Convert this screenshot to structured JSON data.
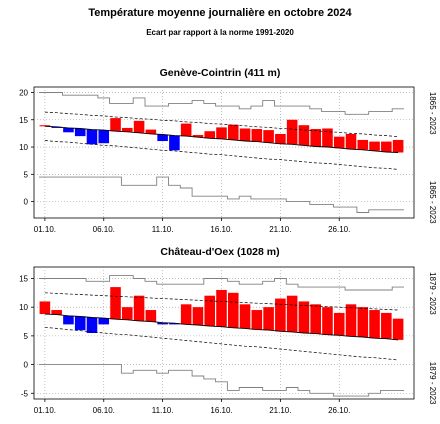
{
  "header": {
    "title": "Température moyenne journalière en octobre 2024",
    "subtitle": "Ecart par rapport à la norme 1991-2020"
  },
  "colors": {
    "above_norm": "#ff0000",
    "below_norm": "#0000ff",
    "record": "#808080",
    "norm": "#000000"
  },
  "chart_data": [
    {
      "type": "bar",
      "title": "Genève-Cointrin (411 m)",
      "record_label_top": "1865 - 2023",
      "record_label_bottom": "1865 - 2023",
      "x_ticks": [
        "01.10.",
        "06.10.",
        "11.10.",
        "16.10.",
        "21.10.",
        "26.10."
      ],
      "ylim": [
        -3,
        21
      ],
      "yticks": [
        0,
        5,
        10,
        15,
        20
      ],
      "grid": true,
      "days": [
        1,
        2,
        3,
        4,
        5,
        6,
        7,
        8,
        9,
        10,
        11,
        12,
        13,
        14,
        15,
        16,
        17,
        18,
        19,
        20,
        21,
        22,
        23,
        24,
        25,
        26,
        27,
        28,
        29,
        30,
        31
      ],
      "values": [
        14.0,
        13.5,
        12.7,
        12.0,
        10.5,
        10.7,
        15.3,
        13.5,
        14.8,
        13.2,
        11.1,
        9.4,
        14.3,
        12.2,
        12.9,
        13.6,
        14.1,
        13.4,
        13.3,
        13.1,
        12.4,
        15.0,
        14.0,
        13.3,
        13.4,
        11.9,
        12.4,
        11.3,
        11.0,
        11.0,
        11.3
      ],
      "norm_mean": [
        13.8,
        13.7,
        13.5,
        13.4,
        13.2,
        13.1,
        12.9,
        12.8,
        12.6,
        12.4,
        12.3,
        12.1,
        12.0,
        11.8,
        11.6,
        11.5,
        11.3,
        11.1,
        11.0,
        10.8,
        10.6,
        10.5,
        10.3,
        10.1,
        10.0,
        9.8,
        9.6,
        9.5,
        9.3,
        9.1,
        9.0
      ],
      "norm_upper": [
        16.4,
        16.3,
        16.1,
        16.0,
        15.8,
        15.7,
        15.5,
        15.4,
        15.2,
        15.1,
        14.9,
        14.8,
        14.6,
        14.5,
        14.3,
        14.2,
        14.0,
        13.9,
        13.7,
        13.6,
        13.4,
        13.3,
        13.1,
        13.0,
        12.8,
        12.7,
        12.5,
        12.4,
        12.2,
        12.1,
        11.9
      ],
      "norm_lower": [
        11.2,
        11.0,
        10.9,
        10.7,
        10.5,
        10.3,
        10.2,
        10.0,
        9.8,
        9.6,
        9.4,
        9.3,
        9.1,
        8.9,
        8.7,
        8.6,
        8.4,
        8.2,
        8.0,
        7.8,
        7.7,
        7.5,
        7.3,
        7.1,
        7.0,
        6.8,
        6.6,
        6.4,
        6.2,
        6.1,
        5.9
      ],
      "record_max": [
        20.0,
        20.0,
        19.5,
        19.5,
        19.5,
        19.0,
        18.0,
        18.0,
        19.0,
        17.5,
        17.5,
        18.0,
        18.0,
        18.5,
        18.0,
        17.5,
        17.5,
        17.0,
        17.5,
        18.5,
        17.5,
        17.5,
        17.5,
        17.0,
        16.5,
        16.5,
        16.0,
        16.0,
        16.5,
        16.5,
        17.0
      ],
      "record_min": [
        4.5,
        4.5,
        4.5,
        4.5,
        4.5,
        4.5,
        4.5,
        3.0,
        3.0,
        3.0,
        4.5,
        3.0,
        2.5,
        1.0,
        1.0,
        1.0,
        0.5,
        1.0,
        0.5,
        0.5,
        0.5,
        0.0,
        0.0,
        -0.5,
        -0.5,
        -1.0,
        -1.0,
        -2.0,
        -1.5,
        -1.5,
        -1.5
      ]
    },
    {
      "type": "bar",
      "title": "Château-d'Oex (1028 m)",
      "record_label_top": "1879 - 2023",
      "record_label_bottom": "1879 - 2023",
      "x_ticks": [
        "01.10.",
        "06.10.",
        "11.10.",
        "16.10.",
        "21.10.",
        "26.10."
      ],
      "ylim": [
        -6,
        17
      ],
      "yticks": [
        -5,
        0,
        5,
        10,
        15
      ],
      "grid": true,
      "days": [
        1,
        2,
        3,
        4,
        5,
        6,
        7,
        8,
        9,
        10,
        11,
        12,
        13,
        14,
        15,
        16,
        17,
        18,
        19,
        20,
        21,
        22,
        23,
        24,
        25,
        26,
        27,
        28,
        29,
        30,
        31
      ],
      "values": [
        11.0,
        9.5,
        7.0,
        6.0,
        5.5,
        7.0,
        13.5,
        10.0,
        12.0,
        9.5,
        7.0,
        7.0,
        10.5,
        10.0,
        12.0,
        13.0,
        12.5,
        10.5,
        9.5,
        10.0,
        11.5,
        12.0,
        11.0,
        10.5,
        10.0,
        9.0,
        10.5,
        10.0,
        9.5,
        9.0,
        8.0
      ],
      "norm_mean": [
        8.8,
        8.7,
        8.5,
        8.4,
        8.2,
        8.1,
        7.9,
        7.8,
        7.6,
        7.5,
        7.3,
        7.2,
        7.0,
        6.9,
        6.7,
        6.6,
        6.4,
        6.3,
        6.1,
        6.0,
        5.8,
        5.7,
        5.5,
        5.4,
        5.2,
        5.1,
        4.9,
        4.8,
        4.6,
        4.5,
        4.3
      ],
      "norm_upper": [
        12.5,
        12.4,
        12.3,
        12.2,
        12.1,
        12.0,
        11.9,
        11.8,
        11.7,
        11.6,
        11.5,
        11.4,
        11.3,
        11.2,
        11.1,
        11.0,
        10.9,
        10.8,
        10.7,
        10.6,
        10.5,
        10.4,
        10.3,
        10.2,
        10.1,
        10.0,
        9.9,
        9.8,
        9.7,
        9.6,
        9.5
      ],
      "norm_lower": [
        6.5,
        6.3,
        6.1,
        5.9,
        5.7,
        5.5,
        5.3,
        5.2,
        5.0,
        4.8,
        4.6,
        4.4,
        4.2,
        4.0,
        3.8,
        3.6,
        3.4,
        3.2,
        3.1,
        2.9,
        2.7,
        2.5,
        2.3,
        2.1,
        1.9,
        1.7,
        1.5,
        1.3,
        1.2,
        1.0,
        0.8
      ],
      "record_max": [
        15.0,
        15.0,
        15.0,
        15.0,
        14.5,
        14.5,
        15.5,
        15.5,
        15.0,
        14.5,
        14.0,
        14.0,
        14.0,
        14.0,
        15.0,
        15.0,
        14.5,
        14.0,
        14.0,
        14.5,
        15.0,
        14.0,
        13.5,
        13.5,
        13.5,
        13.5,
        13.0,
        13.0,
        13.0,
        13.0,
        13.5
      ],
      "record_min": [
        0.0,
        0.0,
        0.0,
        0.0,
        0.0,
        0.0,
        0.0,
        -1.5,
        -1.0,
        -1.0,
        -1.5,
        -1.0,
        -1.0,
        -2.0,
        -2.5,
        -3.0,
        -4.5,
        -4.0,
        -4.0,
        -4.5,
        -4.5,
        -4.0,
        -4.5,
        -5.0,
        -5.0,
        -5.5,
        -5.5,
        -5.5,
        -5.0,
        -4.5,
        -4.5
      ]
    }
  ]
}
